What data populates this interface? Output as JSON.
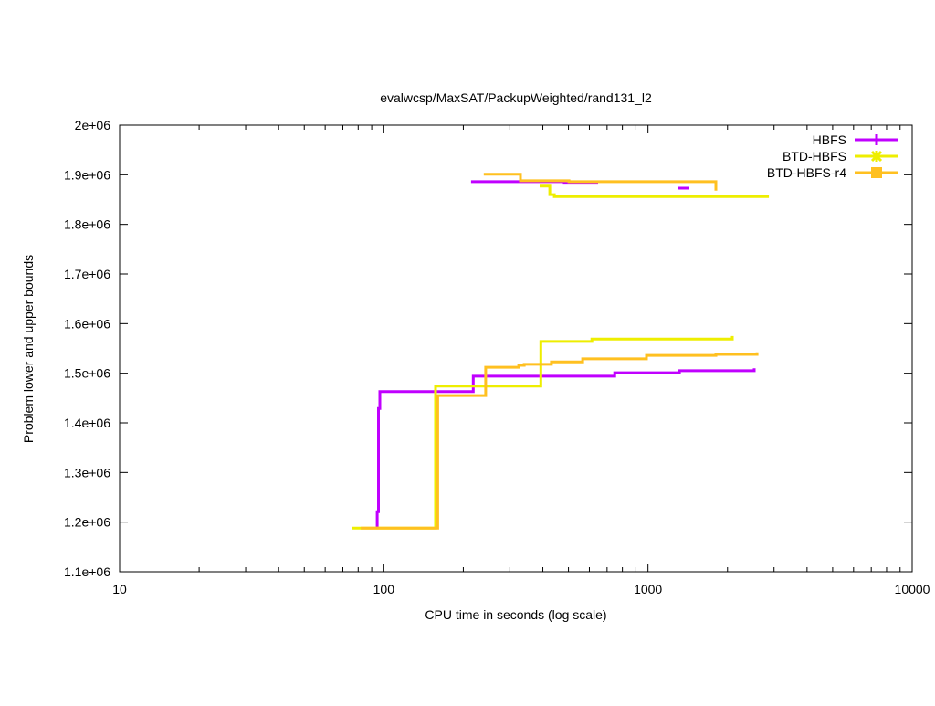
{
  "chart_data": {
    "type": "line",
    "title": "evalwcsp/MaxSAT/PackupWeighted/rand131_l2",
    "xlabel": "CPU time in seconds (log scale)",
    "ylabel": "Problem lower and upper bounds",
    "x_scale": "log",
    "xlim": [
      10,
      10000
    ],
    "ylim": [
      1100000,
      2000000
    ],
    "x_ticks": [
      "10",
      "100",
      "1000",
      "10000"
    ],
    "y_ticks": [
      "1.1e+06",
      "1.2e+06",
      "1.3e+06",
      "1.4e+06",
      "1.5e+06",
      "1.6e+06",
      "1.7e+06",
      "1.8e+06",
      "1.9e+06",
      "2e+06"
    ],
    "grid": false,
    "legend_position": "top-right",
    "series": [
      {
        "name": "HBFS",
        "color": "#c000ff",
        "marker": "plus",
        "lower": [
          [
            94.4,
            1188000
          ],
          [
            94.4,
            1221000
          ],
          [
            95.5,
            1429000
          ],
          [
            96.6,
            1463000
          ],
          [
            218,
            1494000
          ],
          [
            748,
            1501000
          ],
          [
            1315,
            1505000
          ],
          [
            2524,
            1510000
          ]
        ],
        "upper": [
          [
            214,
            1886000
          ],
          [
            482,
            1883000
          ],
          [
            647,
            1883000
          ]
        ],
        "upper2": [
          [
            1303,
            1873000
          ],
          [
            1435,
            1873000
          ]
        ]
      },
      {
        "name": "BTD-HBFS",
        "color": "#eeee00",
        "marker": "star",
        "lower": [
          [
            75.5,
            1188000
          ],
          [
            157,
            1474000
          ],
          [
            393,
            1564000
          ],
          [
            613,
            1569000
          ],
          [
            2085,
            1575000
          ]
        ],
        "upper": [
          [
            389,
            1877000
          ],
          [
            425,
            1860000
          ],
          [
            442,
            1856000
          ],
          [
            2870,
            1856000
          ]
        ]
      },
      {
        "name": "BTD-HBFS-r4",
        "color": "#ffc020",
        "marker": "square",
        "lower": [
          [
            81.8,
            1188000
          ],
          [
            160,
            1455000
          ],
          [
            243,
            1512000
          ],
          [
            324,
            1516000
          ],
          [
            340,
            1518000
          ],
          [
            431,
            1523000
          ],
          [
            566,
            1529000
          ],
          [
            987,
            1536000
          ],
          [
            1807,
            1538000
          ],
          [
            2586,
            1542000
          ]
        ],
        "upper": [
          [
            239,
            1901000
          ],
          [
            329,
            1888000
          ],
          [
            502,
            1886000
          ],
          [
            1807,
            1868000
          ]
        ]
      }
    ]
  }
}
